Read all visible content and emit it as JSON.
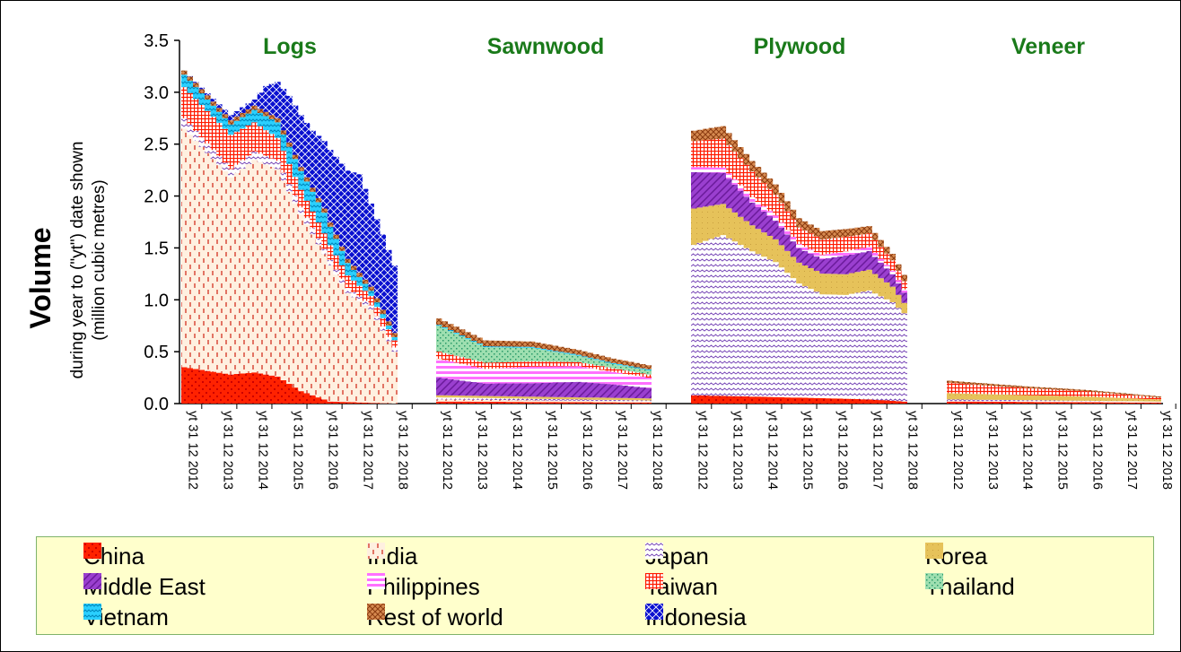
{
  "chart_data": {
    "type": "area",
    "stacked": true,
    "y_axis": {
      "label": "Volume",
      "sublabel": "during year to (\"yt\") date shown (million cubic metres)",
      "min": 0,
      "max": 3.5,
      "ticks": [
        "0.0",
        "0.5",
        "1.0",
        "1.5",
        "2.0",
        "2.5",
        "3.0",
        "3.5"
      ]
    },
    "x_tick_labels": [
      "yt 31 12 2012",
      "yt 31 12 2013",
      "yt 31 12 2014",
      "yt 31 12 2015",
      "yt 31 12 2016",
      "yt 31 12 2017",
      "yt 31 12 2018"
    ],
    "legend_placement": "bottom",
    "series_names": [
      "China",
      "India",
      "Japan",
      "Korea",
      "Middle East",
      "Philippines",
      "Taiwan",
      "Thailand",
      "Vietnam",
      "Rest of world",
      "Indonesia"
    ],
    "colors": {
      "China": "#ff0000",
      "India": "#ffffff",
      "Japan": "#ffffff",
      "Korea": "#e8c060",
      "Middle East": "#9933cc",
      "Philippines": "#ff66ff",
      "Taiwan": "#ff0000",
      "Thailand": "#66cc99",
      "Vietnam": "#33ccff",
      "Rest of world": "#cc6633",
      "Indonesia": "#0000cc"
    },
    "panels": [
      {
        "title": "Logs",
        "knots": {
          "China": [
            [
              0,
              0.35
            ],
            [
              8,
              0.28
            ],
            [
              12,
              0.3
            ],
            [
              16,
              0.26
            ],
            [
              20,
              0.12
            ],
            [
              25,
              0.02
            ],
            [
              36,
              0.0
            ]
          ],
          "India": [
            [
              0,
              2.3
            ],
            [
              8,
              1.9
            ],
            [
              12,
              2.05
            ],
            [
              16,
              2.0
            ],
            [
              20,
              1.7
            ],
            [
              24,
              1.4
            ],
            [
              28,
              1.05
            ],
            [
              32,
              0.9
            ],
            [
              36,
              0.5
            ]
          ],
          "Japan": [
            [
              0,
              0.1
            ],
            [
              8,
              0.08
            ],
            [
              12,
              0.08
            ],
            [
              16,
              0.08
            ],
            [
              20,
              0.07
            ],
            [
              24,
              0.05
            ],
            [
              28,
              0.05
            ],
            [
              32,
              0.04
            ],
            [
              36,
              0.04
            ]
          ],
          "Korea": [
            [
              0,
              0.0
            ],
            [
              36,
              0.0
            ]
          ],
          "Middle East": [
            [
              0,
              0.0
            ],
            [
              36,
              0.0
            ]
          ],
          "Philippines": [
            [
              0,
              0.0
            ],
            [
              36,
              0.0
            ]
          ],
          "Taiwan": [
            [
              0,
              0.3
            ],
            [
              8,
              0.33
            ],
            [
              12,
              0.28
            ],
            [
              16,
              0.22
            ],
            [
              20,
              0.17
            ],
            [
              24,
              0.15
            ],
            [
              28,
              0.12
            ],
            [
              32,
              0.09
            ],
            [
              36,
              0.07
            ]
          ],
          "Thailand": [
            [
              0,
              0.0
            ],
            [
              36,
              0.0
            ]
          ],
          "Vietnam": [
            [
              0,
              0.12
            ],
            [
              8,
              0.1
            ],
            [
              12,
              0.12
            ],
            [
              16,
              0.15
            ],
            [
              20,
              0.18
            ],
            [
              24,
              0.2
            ],
            [
              28,
              0.12
            ],
            [
              32,
              0.05
            ],
            [
              36,
              0.03
            ]
          ],
          "Rest of world": [
            [
              0,
              0.04
            ],
            [
              36,
              0.04
            ]
          ],
          "Indonesia": [
            [
              0,
              0.0
            ],
            [
              4,
              0.02
            ],
            [
              8,
              0.05
            ],
            [
              12,
              0.06
            ],
            [
              14,
              0.25
            ],
            [
              18,
              0.45
            ],
            [
              22,
              0.55
            ],
            [
              26,
              0.75
            ],
            [
              30,
              0.95
            ],
            [
              32,
              0.8
            ],
            [
              36,
              0.65
            ]
          ]
        }
      },
      {
        "title": "Sawnwood",
        "knots": {
          "China": [
            [
              0,
              0.02
            ],
            [
              36,
              0.01
            ]
          ],
          "India": [
            [
              0,
              0.02
            ],
            [
              36,
              0.01
            ]
          ],
          "Japan": [
            [
              0,
              0.02
            ],
            [
              36,
              0.01
            ]
          ],
          "Korea": [
            [
              0,
              0.02
            ],
            [
              36,
              0.02
            ]
          ],
          "Middle East": [
            [
              0,
              0.17
            ],
            [
              8,
              0.12
            ],
            [
              16,
              0.13
            ],
            [
              24,
              0.15
            ],
            [
              30,
              0.13
            ],
            [
              36,
              0.1
            ]
          ],
          "Philippines": [
            [
              0,
              0.18
            ],
            [
              8,
              0.14
            ],
            [
              16,
              0.16
            ],
            [
              24,
              0.15
            ],
            [
              30,
              0.12
            ],
            [
              36,
              0.1
            ]
          ],
          "Taiwan": [
            [
              0,
              0.07
            ],
            [
              8,
              0.06
            ],
            [
              16,
              0.05
            ],
            [
              24,
              0.04
            ],
            [
              36,
              0.03
            ]
          ],
          "Thailand": [
            [
              0,
              0.25
            ],
            [
              8,
              0.15
            ],
            [
              16,
              0.13
            ],
            [
              24,
              0.06
            ],
            [
              30,
              0.04
            ],
            [
              36,
              0.04
            ]
          ],
          "Vietnam": [
            [
              0,
              0.01
            ],
            [
              36,
              0.01
            ]
          ],
          "Rest of world": [
            [
              0,
              0.06
            ],
            [
              36,
              0.04
            ]
          ],
          "Indonesia": [
            [
              0,
              0.0
            ],
            [
              36,
              0.0
            ]
          ]
        }
      },
      {
        "title": "Plywood",
        "knots": {
          "China": [
            [
              0,
              0.08
            ],
            [
              8,
              0.07
            ],
            [
              16,
              0.06
            ],
            [
              24,
              0.05
            ],
            [
              30,
              0.04
            ],
            [
              36,
              0.02
            ]
          ],
          "India": [
            [
              0,
              0.0
            ],
            [
              36,
              0.0
            ]
          ],
          "Japan": [
            [
              0,
              1.45
            ],
            [
              5,
              1.55
            ],
            [
              10,
              1.4
            ],
            [
              14,
              1.3
            ],
            [
              18,
              1.1
            ],
            [
              22,
              1.0
            ],
            [
              26,
              1.0
            ],
            [
              30,
              1.05
            ],
            [
              34,
              0.95
            ],
            [
              36,
              0.85
            ]
          ],
          "Korea": [
            [
              0,
              0.35
            ],
            [
              5,
              0.3
            ],
            [
              10,
              0.25
            ],
            [
              14,
              0.22
            ],
            [
              18,
              0.2
            ],
            [
              22,
              0.2
            ],
            [
              26,
              0.2
            ],
            [
              30,
              0.2
            ],
            [
              34,
              0.15
            ],
            [
              36,
              0.1
            ]
          ],
          "Middle East": [
            [
              0,
              0.35
            ],
            [
              5,
              0.3
            ],
            [
              10,
              0.22
            ],
            [
              14,
              0.18
            ],
            [
              18,
              0.14
            ],
            [
              22,
              0.14
            ],
            [
              26,
              0.18
            ],
            [
              30,
              0.18
            ],
            [
              34,
              0.12
            ],
            [
              36,
              0.1
            ]
          ],
          "Philippines": [
            [
              0,
              0.05
            ],
            [
              5,
              0.05
            ],
            [
              10,
              0.05
            ],
            [
              14,
              0.05
            ],
            [
              18,
              0.04
            ],
            [
              22,
              0.04
            ],
            [
              30,
              0.04
            ],
            [
              36,
              0.03
            ]
          ],
          "Taiwan": [
            [
              0,
              0.25
            ],
            [
              5,
              0.28
            ],
            [
              10,
              0.25
            ],
            [
              14,
              0.2
            ],
            [
              18,
              0.16
            ],
            [
              22,
              0.15
            ],
            [
              26,
              0.14
            ],
            [
              30,
              0.13
            ],
            [
              34,
              0.1
            ],
            [
              36,
              0.08
            ]
          ],
          "Thailand": [
            [
              0,
              0.0
            ],
            [
              36,
              0.0
            ]
          ],
          "Vietnam": [
            [
              0,
              0.0
            ],
            [
              36,
              0.0
            ]
          ],
          "Rest of world": [
            [
              0,
              0.1
            ],
            [
              5,
              0.12
            ],
            [
              10,
              0.1
            ],
            [
              14,
              0.1
            ],
            [
              18,
              0.09
            ],
            [
              22,
              0.08
            ],
            [
              30,
              0.07
            ],
            [
              36,
              0.06
            ]
          ],
          "Indonesia": [
            [
              0,
              0.0
            ],
            [
              36,
              0.0
            ]
          ]
        }
      },
      {
        "title": "Veneer",
        "knots": {
          "China": [
            [
              0,
              0.02
            ],
            [
              36,
              0.01
            ]
          ],
          "India": [
            [
              0,
              0.0
            ],
            [
              36,
              0.0
            ]
          ],
          "Japan": [
            [
              0,
              0.02
            ],
            [
              36,
              0.01
            ]
          ],
          "Korea": [
            [
              0,
              0.06
            ],
            [
              12,
              0.05
            ],
            [
              24,
              0.04
            ],
            [
              36,
              0.02
            ]
          ],
          "Middle East": [
            [
              0,
              0.0
            ],
            [
              36,
              0.0
            ]
          ],
          "Philippines": [
            [
              0,
              0.0
            ],
            [
              36,
              0.0
            ]
          ],
          "Taiwan": [
            [
              0,
              0.1
            ],
            [
              12,
              0.07
            ],
            [
              24,
              0.05
            ],
            [
              36,
              0.02
            ]
          ],
          "Thailand": [
            [
              0,
              0.0
            ],
            [
              36,
              0.0
            ]
          ],
          "Vietnam": [
            [
              0,
              0.0
            ],
            [
              36,
              0.0
            ]
          ],
          "Rest of world": [
            [
              0,
              0.02
            ],
            [
              36,
              0.01
            ]
          ],
          "Indonesia": [
            [
              0,
              0.0
            ],
            [
              36,
              0.0
            ]
          ]
        }
      }
    ]
  },
  "legend": {
    "items": [
      "China",
      "India",
      "Japan",
      "Korea",
      "Middle East",
      "Philippines",
      "Taiwan",
      "Thailand",
      "Vietnam",
      "Rest of world",
      "Indonesia"
    ]
  }
}
